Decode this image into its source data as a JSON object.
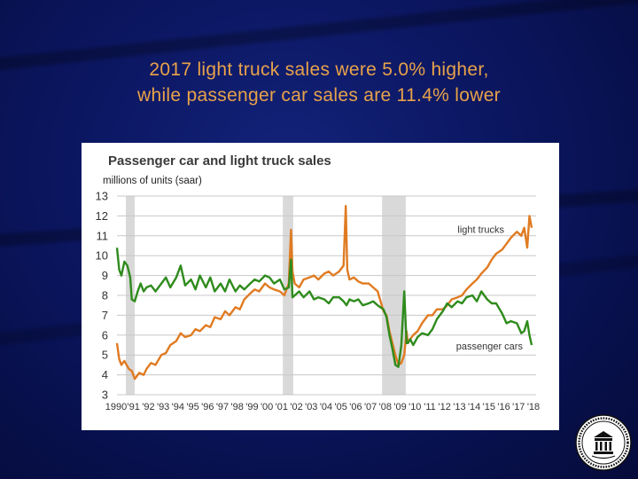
{
  "slide": {
    "title_line1": "2017 light truck sales were 5.0% higher,",
    "title_line2": "while passenger car sales are 11.4% lower"
  },
  "seal_icon": "federal-reserve-seal-icon",
  "colors": {
    "light_trucks": "#e07b22",
    "passenger_cars": "#2e8b1c",
    "recession": "#d9d9d9",
    "title_text": "#e8a24a"
  },
  "chart_data": {
    "type": "line",
    "title": "Passenger car and light truck sales",
    "ylabel": "millions of units (saar)",
    "xlabel": "",
    "ylim": [
      3,
      13
    ],
    "yticks": [
      "3",
      "4",
      "5",
      "6",
      "7",
      "8",
      "9",
      "10",
      "11",
      "12",
      "13"
    ],
    "xlim": [
      1990,
      2018.3
    ],
    "xtick_labels": [
      "1990",
      "'91",
      "'92",
      "'93",
      "'94",
      "'95",
      "'96",
      "'97",
      "'98",
      "'99",
      "'00",
      "'01",
      "'02",
      "'03",
      "'04",
      "'05",
      "'06",
      "'07",
      "'08",
      "'09",
      "'10",
      "'11",
      "'12",
      "'13",
      "'14",
      "'15",
      "'16",
      "'17",
      "'18"
    ],
    "recessions": [
      [
        1990.6,
        1991.2
      ],
      [
        2001.2,
        2001.9
      ],
      [
        2007.9,
        2009.5
      ]
    ],
    "grid": true,
    "series": [
      {
        "name": "light trucks",
        "x": [
          1990.0,
          1990.15,
          1990.3,
          1990.5,
          1990.8,
          1991.0,
          1991.2,
          1991.5,
          1991.8,
          1992.0,
          1992.3,
          1992.6,
          1993.0,
          1993.3,
          1993.6,
          1994.0,
          1994.3,
          1994.6,
          1995.0,
          1995.3,
          1995.6,
          1996.0,
          1996.3,
          1996.6,
          1997.0,
          1997.3,
          1997.6,
          1998.0,
          1998.3,
          1998.6,
          1999.0,
          1999.3,
          1999.6,
          2000.0,
          2000.3,
          2000.6,
          2001.0,
          2001.3,
          2001.6,
          2001.75,
          2001.85,
          2002.0,
          2002.3,
          2002.6,
          2003.0,
          2003.3,
          2003.6,
          2004.0,
          2004.3,
          2004.6,
          2005.0,
          2005.3,
          2005.45,
          2005.55,
          2005.7,
          2006.0,
          2006.3,
          2006.6,
          2007.0,
          2007.3,
          2007.6,
          2008.0,
          2008.2,
          2008.4,
          2008.6,
          2008.8,
          2009.0,
          2009.2,
          2009.4,
          2009.55,
          2009.65,
          2009.8,
          2010.0,
          2010.3,
          2010.6,
          2011.0,
          2011.3,
          2011.6,
          2012.0,
          2012.3,
          2012.6,
          2013.0,
          2013.3,
          2013.6,
          2014.0,
          2014.3,
          2014.6,
          2015.0,
          2015.3,
          2015.6,
          2016.0,
          2016.3,
          2016.6,
          2017.0,
          2017.3,
          2017.5,
          2017.7,
          2017.85,
          2018.0
        ],
        "values": [
          5.6,
          4.8,
          4.5,
          4.7,
          4.3,
          4.2,
          3.8,
          4.1,
          4.0,
          4.3,
          4.6,
          4.5,
          5.0,
          5.1,
          5.5,
          5.7,
          6.1,
          5.9,
          6.0,
          6.3,
          6.2,
          6.5,
          6.4,
          6.9,
          6.8,
          7.2,
          7.0,
          7.4,
          7.3,
          7.8,
          8.1,
          8.3,
          8.2,
          8.6,
          8.4,
          8.3,
          8.2,
          8.0,
          8.6,
          11.3,
          9.2,
          8.6,
          8.4,
          8.8,
          8.9,
          9.0,
          8.8,
          9.1,
          9.2,
          9.0,
          9.2,
          9.5,
          12.5,
          9.3,
          8.8,
          8.9,
          8.7,
          8.6,
          8.6,
          8.4,
          8.2,
          7.2,
          7.0,
          6.2,
          5.6,
          5.0,
          4.5,
          4.6,
          5.0,
          6.2,
          5.6,
          5.8,
          6.0,
          6.2,
          6.6,
          7.0,
          7.0,
          7.3,
          7.3,
          7.5,
          7.8,
          7.9,
          8.0,
          8.3,
          8.6,
          8.8,
          9.1,
          9.4,
          9.8,
          10.1,
          10.3,
          10.6,
          10.9,
          11.2,
          11.0,
          11.4,
          10.4,
          12.0,
          11.4
        ]
      },
      {
        "name": "passenger cars",
        "x": [
          1990.0,
          1990.15,
          1990.3,
          1990.5,
          1990.7,
          1990.9,
          1991.0,
          1991.2,
          1991.4,
          1991.6,
          1991.8,
          1992.0,
          1992.3,
          1992.6,
          1993.0,
          1993.3,
          1993.6,
          1994.0,
          1994.3,
          1994.6,
          1995.0,
          1995.3,
          1995.6,
          1996.0,
          1996.3,
          1996.6,
          1997.0,
          1997.3,
          1997.6,
          1998.0,
          1998.3,
          1998.6,
          1999.0,
          1999.3,
          1999.6,
          2000.0,
          2000.3,
          2000.6,
          2001.0,
          2001.3,
          2001.6,
          2001.75,
          2001.85,
          2002.0,
          2002.3,
          2002.6,
          2003.0,
          2003.3,
          2003.6,
          2004.0,
          2004.3,
          2004.6,
          2005.0,
          2005.3,
          2005.5,
          2005.7,
          2006.0,
          2006.3,
          2006.6,
          2007.0,
          2007.3,
          2007.6,
          2008.0,
          2008.2,
          2008.4,
          2008.6,
          2008.8,
          2009.0,
          2009.2,
          2009.4,
          2009.55,
          2009.65,
          2009.8,
          2010.0,
          2010.3,
          2010.6,
          2011.0,
          2011.3,
          2011.6,
          2012.0,
          2012.3,
          2012.6,
          2013.0,
          2013.3,
          2013.6,
          2014.0,
          2014.3,
          2014.6,
          2015.0,
          2015.3,
          2015.6,
          2016.0,
          2016.3,
          2016.6,
          2017.0,
          2017.3,
          2017.5,
          2017.7,
          2017.85,
          2018.0
        ],
        "values": [
          10.4,
          9.3,
          9.0,
          9.7,
          9.5,
          8.9,
          7.8,
          7.7,
          8.2,
          8.6,
          8.2,
          8.4,
          8.5,
          8.2,
          8.6,
          8.9,
          8.4,
          8.9,
          9.5,
          8.5,
          8.8,
          8.3,
          9.0,
          8.4,
          8.9,
          8.2,
          8.6,
          8.2,
          8.8,
          8.2,
          8.5,
          8.3,
          8.6,
          8.8,
          8.7,
          9.0,
          8.9,
          8.6,
          8.8,
          8.3,
          8.4,
          9.8,
          7.9,
          8.0,
          8.2,
          7.9,
          8.2,
          7.8,
          7.9,
          7.8,
          7.6,
          7.9,
          7.9,
          7.7,
          7.5,
          7.8,
          7.7,
          7.8,
          7.5,
          7.6,
          7.7,
          7.5,
          7.3,
          6.9,
          6.0,
          5.3,
          4.5,
          4.4,
          5.5,
          8.2,
          5.6,
          5.6,
          5.8,
          5.5,
          5.9,
          6.1,
          6.0,
          6.3,
          6.8,
          7.2,
          7.6,
          7.4,
          7.7,
          7.6,
          7.9,
          8.0,
          7.7,
          8.2,
          7.8,
          7.6,
          7.6,
          7.1,
          6.6,
          6.7,
          6.6,
          6.1,
          6.2,
          6.7,
          6.0,
          5.5
        ]
      }
    ],
    "annotations": [
      {
        "text": "light trucks",
        "series": "light trucks"
      },
      {
        "text": "passenger cars",
        "series": "passenger cars"
      }
    ]
  }
}
